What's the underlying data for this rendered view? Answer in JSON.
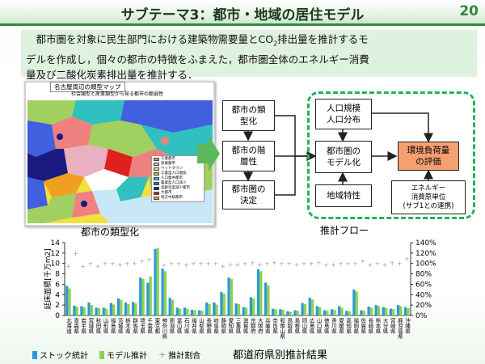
{
  "slide": {
    "title": "サブテーマ3：都市・地域の居住モデル",
    "number": "20",
    "intro_line1_pre": "　都市圏を対象に民生部門における建築物需要量とCO",
    "intro_co2_sub": "2",
    "intro_line1_post": "排出量を推計するモ",
    "intro_line2": "デルを作成し，個々の都市の特徴をふまえた，都市圏全体のエネルギー消費",
    "intro_line3": "量及び二酸化炭素排出量を推計する．"
  },
  "map": {
    "title": "名古屋周辺の類型マップ",
    "subtitle": "社会類型と産業類型から見る都市の脆弱性",
    "caption": "都市の類型化",
    "legend": [
      {
        "label": "工業都市",
        "color": "#f08080"
      },
      {
        "label": "商業都市",
        "color": "#e8b0c0"
      },
      {
        "label": "ベッドタウン",
        "color": "#f0e040"
      },
      {
        "label": "工業型人口増加",
        "color": "#a0d060"
      },
      {
        "label": "人口集中都市",
        "color": "#30c0c0"
      },
      {
        "label": "農業型人口減少",
        "color": "#4060e0"
      },
      {
        "label": "高齢化型減少都市",
        "color": "#1a1a80"
      },
      {
        "label": "大都市",
        "color": "#e02020"
      },
      {
        "label": "地方中核都市",
        "color": "#f0a020"
      }
    ]
  },
  "flow": {
    "caption": "推計フロー",
    "city_typing": "都市の類\n型化",
    "city_hierarchy": "都市の階\n層性",
    "metro_decision": "都市圏の\n決定",
    "population": "人口規模\n人口分布",
    "metro_model": "都市圏の\nモデル化",
    "regional": "地域特性",
    "env_eval": "環境負荷量\nの評価",
    "energy_unit": "エネルギー\n消費原単位\n(サブ1との連携)"
  },
  "colors": {
    "accent": "#2e8b3a",
    "dashed": "#22b35a",
    "env_eval_fill": "#f5a070",
    "stock_bar": "#2a9ad8",
    "model_bar": "#8fd14f",
    "ratio_marker": "#a0a0a0"
  },
  "chart_data": {
    "type": "bar",
    "caption": "都道府県別推計結果",
    "ylabel": "延床面積[千万m2]",
    "ylim": [
      0,
      14
    ],
    "yticks": [
      0,
      2,
      4,
      6,
      8,
      10,
      12,
      14
    ],
    "y2lim": [
      0,
      140
    ],
    "y2ticks": [
      "0%",
      "20%",
      "40%",
      "60%",
      "80%",
      "100%",
      "120%",
      "140%"
    ],
    "categories": [
      "北海道",
      "青森県",
      "岩手県",
      "宮城県",
      "秋田県",
      "山形県",
      "福島県",
      "茨城県",
      "栃木県",
      "群馬県",
      "埼玉県",
      "千葉県",
      "東京都",
      "神奈川県",
      "新潟県",
      "富山県",
      "石川県",
      "福井県",
      "山梨県",
      "長野県",
      "岐阜県",
      "静岡県",
      "愛知県",
      "三重県",
      "滋賀県",
      "京都府",
      "大阪府",
      "兵庫県",
      "奈良県",
      "和歌山県",
      "鳥取県",
      "島根県",
      "岡山県",
      "広島県",
      "山口県",
      "徳島県",
      "香川県",
      "愛媛県",
      "高知県",
      "福岡県",
      "佐賀県",
      "長崎県",
      "熊本県",
      "大分県",
      "宮崎県",
      "鹿児島県",
      "沖縄県"
    ],
    "series": [
      {
        "name": "ストック統計",
        "values": [
          5.7,
          1.9,
          1.8,
          2.5,
          1.5,
          1.5,
          2.4,
          3.3,
          2.5,
          2.6,
          7.3,
          6.3,
          12.8,
          9.0,
          3.4,
          1.5,
          1.5,
          1.1,
          1.0,
          2.5,
          2.5,
          4.5,
          7.3,
          2.3,
          1.6,
          3.5,
          8.9,
          6.3,
          1.3,
          1.2,
          0.8,
          1.0,
          2.4,
          3.4,
          1.8,
          1.0,
          1.2,
          1.8,
          0.9,
          5.0,
          1.0,
          1.7,
          2.0,
          1.6,
          1.3,
          2.0,
          1.6
        ]
      },
      {
        "name": "モデル推計",
        "values": [
          5.2,
          1.7,
          1.6,
          2.0,
          1.4,
          1.3,
          2.1,
          3.0,
          2.2,
          2.3,
          7.0,
          7.5,
          13.0,
          8.5,
          3.0,
          1.3,
          1.3,
          1.0,
          0.9,
          2.2,
          2.1,
          4.2,
          7.0,
          2.2,
          1.5,
          3.3,
          8.5,
          5.8,
          1.2,
          1.1,
          0.7,
          0.9,
          2.2,
          3.1,
          1.6,
          0.9,
          1.1,
          1.5,
          0.8,
          4.6,
          0.9,
          1.5,
          1.8,
          1.4,
          1.2,
          1.8,
          1.4
        ]
      },
      {
        "name": "推計割合",
        "axis": "right",
        "values": [
          95,
          120,
          95,
          100,
          95,
          100,
          100,
          98,
          100,
          100,
          105,
          108,
          100,
          97,
          100,
          100,
          98,
          100,
          100,
          100,
          100,
          95,
          98,
          98,
          100,
          102,
          98,
          100,
          102,
          100,
          100,
          98,
          100,
          100,
          102,
          98,
          98,
          100,
          100,
          100,
          105,
          98,
          100,
          98,
          102,
          100,
          110
        ]
      }
    ]
  }
}
